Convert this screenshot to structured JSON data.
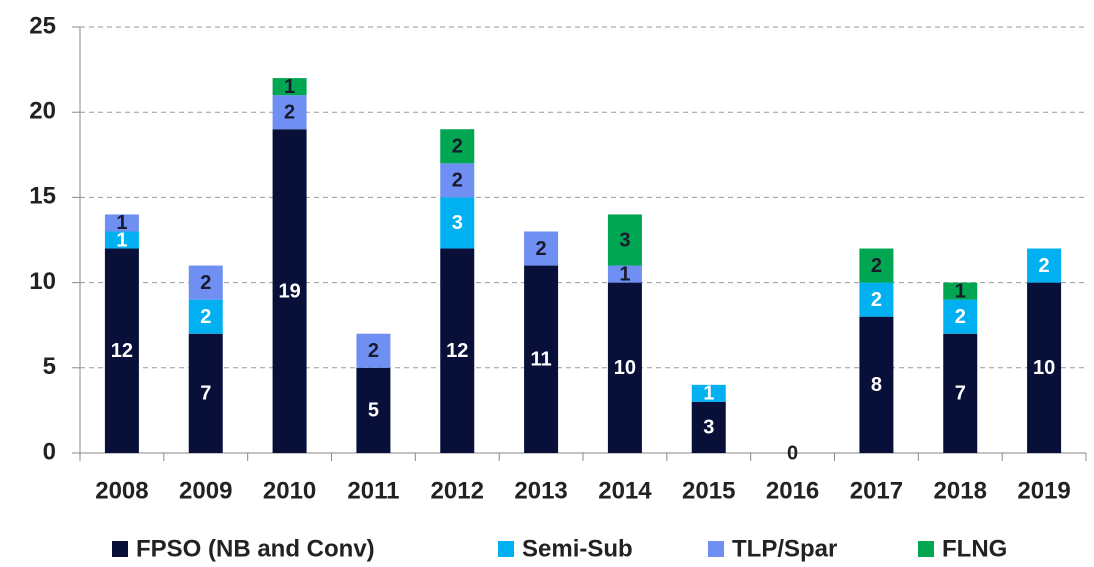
{
  "chart_data": {
    "type": "stacked_bar",
    "categories": [
      "2008",
      "2009",
      "2010",
      "2011",
      "2012",
      "2013",
      "2014",
      "2015",
      "2016",
      "2017",
      "2018",
      "2019"
    ],
    "series": [
      {
        "name": "FPSO (NB and Conv)",
        "color": "#08103a",
        "label_color": "#ffffff",
        "values": [
          12,
          7,
          19,
          5,
          12,
          11,
          10,
          3,
          0,
          8,
          7,
          10
        ]
      },
      {
        "name": "Semi-Sub",
        "color": "#00b0f0",
        "label_color": "#ffffff",
        "values": [
          1,
          2,
          null,
          null,
          3,
          null,
          null,
          1,
          null,
          2,
          2,
          2
        ]
      },
      {
        "name": "TLP/Spar",
        "color": "#6f8ff2",
        "label_color": "#1a1a2e",
        "values": [
          1,
          2,
          2,
          2,
          2,
          2,
          1,
          null,
          null,
          null,
          null,
          null
        ]
      },
      {
        "name": "FLNG",
        "color": "#00a651",
        "label_color": "#1a1a2e",
        "values": [
          null,
          null,
          1,
          null,
          2,
          null,
          3,
          null,
          null,
          2,
          1,
          null
        ]
      }
    ],
    "ylim": [
      0,
      25
    ],
    "yticks": [
      0,
      5,
      10,
      15,
      20,
      25
    ],
    "grid": true,
    "legend": "bottom"
  }
}
